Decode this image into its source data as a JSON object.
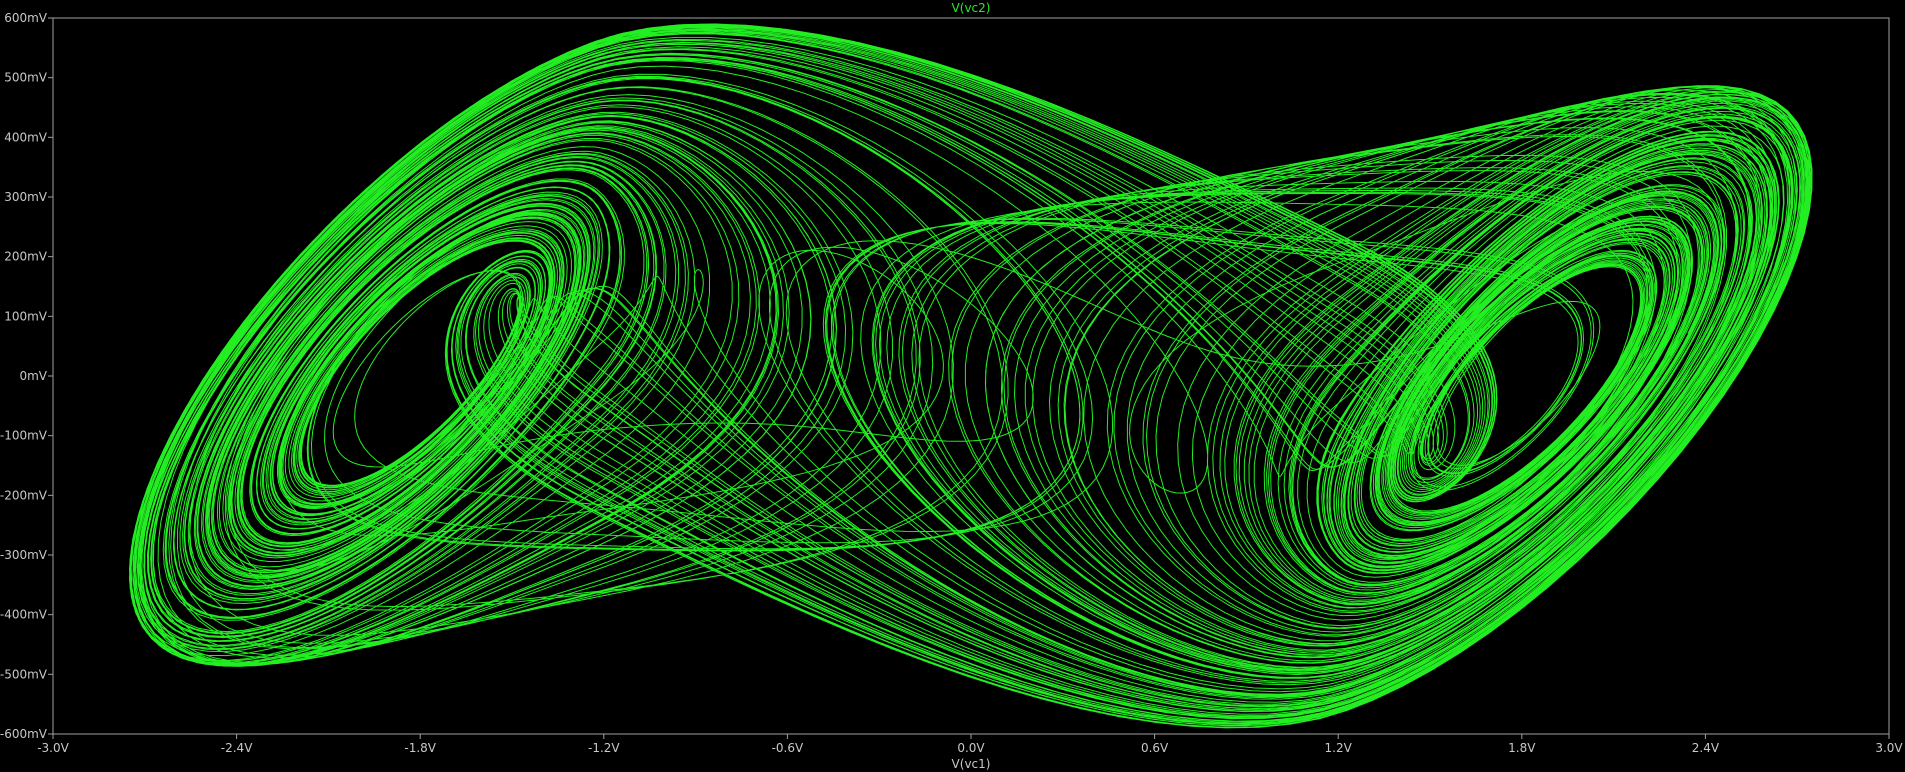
{
  "chart_data": {
    "type": "line",
    "title": "V(vc2)",
    "xlabel": "V(vc1)",
    "ylabel": "",
    "xlim": [
      -3.0,
      3.0
    ],
    "ylim": [
      -0.6,
      0.6
    ],
    "xtick_values": [
      -3.0,
      -2.4,
      -1.8,
      -1.2,
      -0.6,
      0.0,
      0.6,
      1.2,
      1.8,
      2.4,
      3.0
    ],
    "xtick_labels": [
      "-3.0V",
      "-2.4V",
      "-1.8V",
      "-1.2V",
      "-0.6V",
      "0.0V",
      "0.6V",
      "1.2V",
      "1.8V",
      "2.4V",
      "3.0V"
    ],
    "ytick_values": [
      0.6,
      0.5,
      0.4,
      0.3,
      0.2,
      0.1,
      0.0,
      -0.1,
      -0.2,
      -0.3,
      -0.4,
      -0.5,
      -0.6
    ],
    "ytick_labels": [
      "600mV",
      "500mV",
      "400mV",
      "300mV",
      "200mV",
      "100mV",
      "0mV",
      "-100mV",
      "-200mV",
      "-300mV",
      "-400mV",
      "-500mV",
      "-600mV"
    ],
    "grid": false,
    "series": [
      {
        "name": "V(vc2)",
        "color": "#22ee22",
        "attractor": {
          "left_focus": [
            -1.65,
            0.02
          ],
          "right_focus": [
            1.75,
            -0.02
          ],
          "x_extent": [
            -2.75,
            2.75
          ],
          "y_extent": [
            -0.59,
            0.59
          ]
        }
      }
    ]
  },
  "colors": {
    "background": "#000000",
    "trace": "#22ee22",
    "axis": "#a0a0a0",
    "tick_text": "#c8c8c8",
    "title_text": "#22ee22",
    "xlabel_text": "#c8c8c8"
  }
}
